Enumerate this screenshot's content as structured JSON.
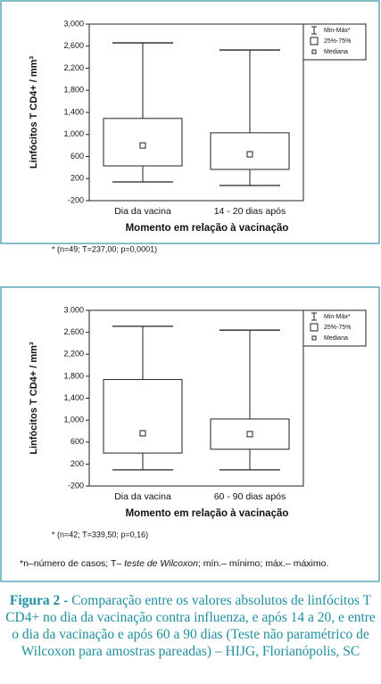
{
  "chart_data": [
    {
      "type": "box",
      "ylabel": "Linfócitos T CD4+ / mm³",
      "xlabel": "Momento em relação à vacinação",
      "categories": [
        "Dia da vacina",
        "14 - 20 dias após"
      ],
      "boxes": [
        {
          "min": 140,
          "q1": 430,
          "median": 800,
          "q3": 1290,
          "max": 2660
        },
        {
          "min": 75,
          "q1": 366,
          "median": 640,
          "q3": 1030,
          "max": 2530
        }
      ],
      "ylim": [
        -200,
        3000
      ],
      "yticks": [
        -200,
        200,
        600,
        {
          "value": 1000,
          "label": "1,000"
        },
        {
          "value": 1400,
          "label": "1,400"
        },
        {
          "value": 1800,
          "label": "1,800"
        },
        {
          "value": 2200,
          "label": "2,200"
        },
        {
          "value": 2600,
          "label": "2,600"
        },
        {
          "value": 3000,
          "label": "3,000"
        }
      ],
      "legend": [
        "Min-Máx*",
        "25%-75%",
        "Mediana"
      ],
      "legend_position": "upper right",
      "footnote": "* (n=49;  T=237,00;  p=0,0001)"
    },
    {
      "type": "box",
      "ylabel": "Linfócitos T CD4+ / mm³",
      "xlabel": "Momento em relação à vacinação",
      "categories": [
        "Dia da vacina",
        "60 - 90 dias após"
      ],
      "boxes": [
        {
          "min": 95,
          "q1": 400,
          "median": 760,
          "q3": 1740,
          "max": 2710
        },
        {
          "min": 95,
          "q1": 470,
          "median": 745,
          "q3": 1020,
          "max": 2640
        }
      ],
      "ylim": [
        -200,
        3000
      ],
      "yticks": [
        -200,
        200,
        600,
        {
          "value": 1000,
          "label": "1,000"
        },
        {
          "value": 1400,
          "label": "1,400"
        },
        {
          "value": 1800,
          "label": "1,800"
        },
        {
          "value": 2200,
          "label": "2,200"
        },
        {
          "value": 2600,
          "label": "2,600"
        },
        {
          "value": 3000,
          "label": "3.000"
        }
      ],
      "legend": [
        "Min-Máx*",
        "25%-75%",
        "Mediana"
      ],
      "legend_position": "upper right",
      "footnote": "* (n=42; T=339,50;  p=0,16)"
    }
  ],
  "note": [
    "*n–número de casos; T– ",
    "teste de Wilcoxon",
    "; mín.– mínimo; máx.– máximo."
  ],
  "caption": {
    "label": "Figura 2 -",
    "text": " Comparação entre os valores absolutos de linfócitos T CD4+ no dia da vacinação contra influenza, e após 14 a 20, e entre o dia da vacinação e após 60 a 90 dias (Teste não paramétrico de Wilcoxon para amostras pareadas) – HIJG, Florianópolis, SC"
  }
}
